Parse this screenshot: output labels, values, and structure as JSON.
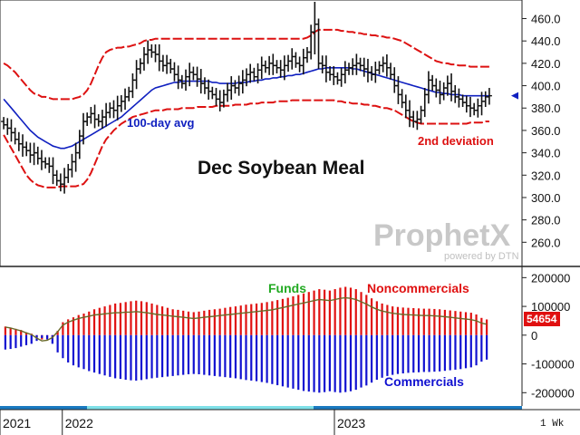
{
  "chart_data": [
    {
      "type": "ohlc",
      "title": "Dec Soybean Meal",
      "ylim": [
        240,
        475
      ],
      "y_ticks": [
        "460.0",
        "440.0",
        "420.0",
        "400.0",
        "380.0",
        "360.0",
        "340.0",
        "320.0",
        "300.0",
        "280.0",
        "260.0"
      ],
      "y_tick_values": [
        460,
        440,
        420,
        400,
        380,
        360,
        340,
        320,
        300,
        280,
        260
      ],
      "annotations": {
        "avg_label": "100-day avg",
        "dev_label": "2nd deviation",
        "last_price": "391"
      },
      "price_series": [
        {
          "name": "price",
          "closes": [
            365,
            362,
            358,
            352,
            348,
            345,
            342,
            338,
            340,
            335,
            332,
            330,
            328,
            320,
            315,
            312,
            318,
            325,
            332,
            340,
            355,
            368,
            372,
            375,
            370,
            368,
            372,
            376,
            380,
            378,
            382,
            386,
            390,
            395,
            405,
            415,
            420,
            428,
            432,
            430,
            428,
            422,
            418,
            420,
            415,
            410,
            405,
            402,
            408,
            412,
            410,
            406,
            402,
            398,
            395,
            392,
            388,
            385,
            392,
            396,
            400,
            398,
            402,
            405,
            410,
            412,
            408,
            414,
            418,
            416,
            420,
            418,
            416,
            414,
            418,
            422,
            426,
            420,
            418,
            425,
            430,
            448,
            455,
            420,
            418,
            412,
            410,
            408,
            405,
            410,
            414,
            416,
            418,
            420,
            418,
            415,
            412,
            410,
            414,
            418,
            420,
            416,
            410,
            400,
            392,
            385,
            378,
            372,
            368,
            370,
            378,
            392,
            405,
            400,
            396,
            392,
            398,
            402,
            395,
            390,
            388,
            385,
            382,
            380,
            378,
            382,
            386,
            390,
            391
          ]
        },
        {
          "name": "100-day avg",
          "values": [
            388,
            384,
            380,
            376,
            372,
            368,
            364,
            360,
            357,
            354,
            352,
            350,
            348,
            346,
            345,
            344,
            344,
            345,
            346,
            348,
            350,
            352,
            354,
            356,
            358,
            360,
            362,
            364,
            366,
            368,
            370,
            372,
            375,
            378,
            381,
            384,
            387,
            390,
            393,
            396,
            398,
            399,
            400,
            401,
            402,
            403,
            403,
            404,
            404,
            404,
            404,
            404,
            404,
            404,
            404,
            403,
            403,
            402,
            402,
            402,
            402,
            402,
            403,
            403,
            403,
            404,
            404,
            405,
            405,
            406,
            406,
            407,
            407,
            408,
            408,
            409,
            409,
            410,
            410,
            411,
            412,
            413,
            414,
            415,
            415,
            416,
            416,
            416,
            416,
            416,
            416,
            416,
            415,
            415,
            414,
            413,
            412,
            411,
            410,
            409,
            408,
            407,
            406,
            405,
            404,
            403,
            402,
            401,
            400,
            399,
            398,
            397,
            396,
            395,
            394,
            394,
            393,
            393,
            392,
            392,
            392,
            391,
            391,
            391,
            391,
            391,
            391,
            391,
            391
          ]
        },
        {
          "name": "upper deviation",
          "values": [
            420,
            418,
            415,
            412,
            408,
            404,
            400,
            396,
            393,
            392,
            390,
            390,
            389,
            388,
            388,
            388,
            388,
            388,
            388,
            389,
            390,
            392,
            396,
            402,
            410,
            418,
            425,
            430,
            432,
            433,
            434,
            434,
            435,
            435,
            436,
            437,
            438,
            440,
            441,
            441,
            442,
            442,
            442,
            442,
            442,
            442,
            442,
            442,
            442,
            442,
            442,
            442,
            442,
            442,
            442,
            442,
            442,
            442,
            442,
            442,
            442,
            442,
            442,
            442,
            442,
            442,
            442,
            442,
            442,
            442,
            442,
            442,
            442,
            442,
            442,
            442,
            442,
            442,
            442,
            442,
            443,
            445,
            448,
            450,
            450,
            450,
            450,
            450,
            450,
            449,
            449,
            448,
            448,
            447,
            447,
            446,
            446,
            445,
            445,
            444,
            444,
            443,
            443,
            442,
            441,
            440,
            438,
            436,
            434,
            432,
            430,
            428,
            426,
            424,
            422,
            421,
            420,
            420,
            419,
            419,
            418,
            418,
            418,
            417,
            417,
            417,
            417,
            417,
            417
          ]
        },
        {
          "name": "lower deviation",
          "values": [
            356,
            350,
            344,
            338,
            332,
            326,
            320,
            316,
            313,
            311,
            310,
            309,
            309,
            309,
            309,
            310,
            310,
            310,
            310,
            310,
            311,
            312,
            316,
            322,
            330,
            338,
            346,
            352,
            356,
            360,
            363,
            366,
            368,
            370,
            372,
            373,
            374,
            375,
            376,
            377,
            378,
            378,
            378,
            379,
            379,
            379,
            379,
            380,
            380,
            380,
            380,
            381,
            381,
            381,
            381,
            381,
            382,
            382,
            382,
            382,
            382,
            383,
            383,
            383,
            383,
            384,
            384,
            384,
            385,
            385,
            385,
            385,
            386,
            386,
            386,
            386,
            387,
            387,
            387,
            387,
            387,
            387,
            387,
            387,
            387,
            387,
            387,
            387,
            386,
            386,
            385,
            385,
            384,
            384,
            384,
            383,
            383,
            382,
            382,
            381,
            380,
            380,
            379,
            378,
            376,
            374,
            372,
            370,
            368,
            367,
            366,
            366,
            366,
            366,
            366,
            366,
            366,
            366,
            366,
            366,
            366,
            366,
            366,
            367,
            367,
            367,
            367,
            368,
            368
          ]
        }
      ]
    },
    {
      "type": "bar",
      "ylim": [
        -240000,
        220000
      ],
      "y_ticks": [
        "200000",
        "100000",
        "0",
        "-100000",
        "-200000"
      ],
      "y_tick_values": [
        200000,
        100000,
        0,
        -100000,
        -200000
      ],
      "labels": {
        "funds": "Funds",
        "noncommercials": "Noncommercials",
        "commercials": "Commercials"
      },
      "last_value": "54654",
      "series": [
        {
          "name": "Noncommercials",
          "values": [
            30000,
            25000,
            22000,
            18000,
            10000,
            5000,
            -8000,
            -15000,
            -12000,
            -5000,
            15000,
            45000,
            55000,
            62000,
            70000,
            75000,
            82000,
            90000,
            95000,
            100000,
            105000,
            110000,
            112000,
            115000,
            118000,
            120000,
            118000,
            115000,
            110000,
            105000,
            100000,
            95000,
            90000,
            88000,
            85000,
            82000,
            80000,
            82000,
            85000,
            88000,
            90000,
            92000,
            95000,
            98000,
            100000,
            103000,
            106000,
            108000,
            110000,
            112000,
            115000,
            118000,
            122000,
            126000,
            130000,
            135000,
            140000,
            145000,
            150000,
            155000,
            160000,
            158000,
            155000,
            160000,
            165000,
            168000,
            165000,
            160000,
            150000,
            140000,
            128000,
            118000,
            110000,
            105000,
            100000,
            98000,
            96000,
            95000,
            94000,
            93000,
            92000,
            92000,
            91000,
            90000,
            88000,
            86000,
            84000,
            82000,
            80000,
            78000,
            72000,
            60000,
            54654
          ]
        },
        {
          "name": "Commercials",
          "values": [
            -50000,
            -48000,
            -45000,
            -40000,
            -35000,
            -30000,
            -20000,
            -10000,
            -15000,
            -30000,
            -60000,
            -80000,
            -95000,
            -105000,
            -112000,
            -118000,
            -125000,
            -130000,
            -135000,
            -140000,
            -145000,
            -150000,
            -152000,
            -155000,
            -157000,
            -158000,
            -156000,
            -153000,
            -150000,
            -148000,
            -146000,
            -144000,
            -142000,
            -140000,
            -138000,
            -136000,
            -135000,
            -136000,
            -138000,
            -140000,
            -142000,
            -144000,
            -146000,
            -148000,
            -150000,
            -153000,
            -156000,
            -158000,
            -160000,
            -163000,
            -166000,
            -170000,
            -174000,
            -178000,
            -182000,
            -186000,
            -190000,
            -194000,
            -196000,
            -198000,
            -200000,
            -198000,
            -195000,
            -198000,
            -200000,
            -198000,
            -195000,
            -190000,
            -182000,
            -175000,
            -165000,
            -155000,
            -148000,
            -142000,
            -138000,
            -135000,
            -133000,
            -131000,
            -130000,
            -129000,
            -128000,
            -128000,
            -127000,
            -126000,
            -124000,
            -122000,
            -120000,
            -118000,
            -115000,
            -112000,
            -105000,
            -92000,
            -85000
          ]
        },
        {
          "name": "Funds",
          "values": [
            28000,
            25000,
            20000,
            15000,
            8000,
            2000,
            -10000,
            -20000,
            -18000,
            -8000,
            12000,
            35000,
            45000,
            52000,
            58000,
            62000,
            66000,
            70000,
            72000,
            74000,
            76000,
            78000,
            78000,
            80000,
            80000,
            82000,
            80000,
            78000,
            75000,
            72000,
            70000,
            68000,
            66000,
            64000,
            62000,
            60000,
            58000,
            60000,
            62000,
            64000,
            66000,
            68000,
            70000,
            72000,
            74000,
            76000,
            78000,
            80000,
            82000,
            84000,
            86000,
            88000,
            92000,
            96000,
            100000,
            104000,
            108000,
            112000,
            116000,
            120000,
            124000,
            122000,
            120000,
            124000,
            128000,
            130000,
            128000,
            124000,
            116000,
            108000,
            98000,
            90000,
            84000,
            80000,
            76000,
            74000,
            72000,
            71000,
            70000,
            69000,
            68000,
            68000,
            67000,
            66000,
            64000,
            62000,
            60000,
            58000,
            56000,
            54000,
            50000,
            42000,
            38000
          ]
        }
      ]
    }
  ],
  "x_axis": {
    "labels": [
      "2021",
      "2022",
      "2023"
    ],
    "label_positions": [
      0,
      10,
      62
    ],
    "period": "1 Wk"
  },
  "watermark": {
    "brand": "ProphetX",
    "sub": "powered by DTN"
  },
  "colors": {
    "price": "#111111",
    "avg": "#1020c0",
    "deviation": "#dd1111",
    "noncommercials": "#e01010",
    "commercials": "#1010d0",
    "funds": "#6a6a2a",
    "funds_label": "#22aa22",
    "last_badge": "#e01010"
  }
}
